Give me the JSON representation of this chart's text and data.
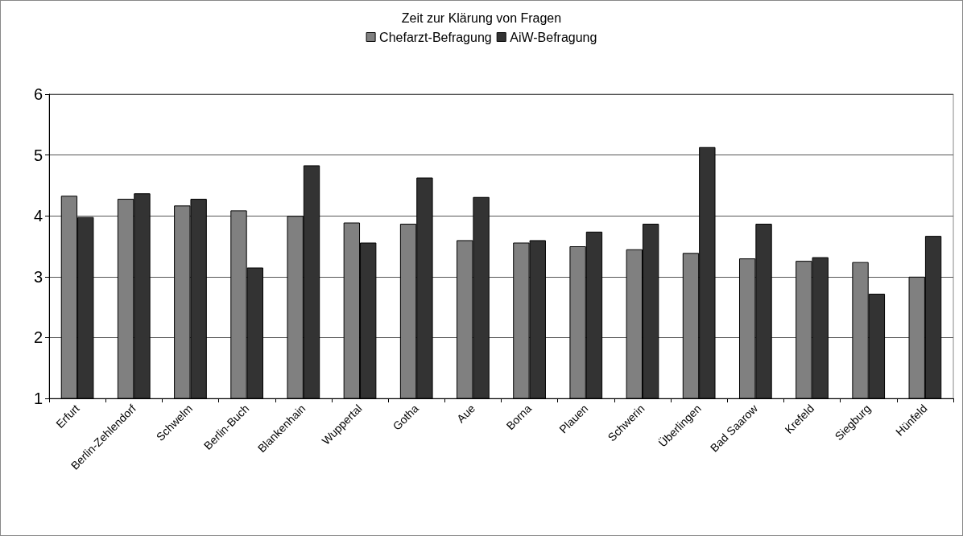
{
  "chart_data": {
    "type": "bar",
    "title": "Zeit zur Klärung von Fragen",
    "categories": [
      "Erfurt",
      "Berlin-Zehlendorf",
      "Schwelm",
      "Berlin-Buch",
      "Blankenhain",
      "Wuppertal",
      "Gotha",
      "Aue",
      "Borna",
      "Plauen",
      "Schwerin",
      "Überlingen",
      "Bad Saarow",
      "Krefeld",
      "Siegburg",
      "Hünfeld"
    ],
    "series": [
      {
        "name": "Chefarzt-Befragung",
        "color": "#808080",
        "values": [
          4.33,
          4.28,
          4.17,
          4.09,
          4.0,
          3.89,
          3.87,
          3.6,
          3.56,
          3.5,
          3.45,
          3.39,
          3.3,
          3.26,
          3.24,
          3.0
        ]
      },
      {
        "name": "AiW-Befragung",
        "color": "#333333",
        "values": [
          3.98,
          4.37,
          4.28,
          3.15,
          4.83,
          3.56,
          4.63,
          4.31,
          3.6,
          3.74,
          3.87,
          5.13,
          3.87,
          3.32,
          2.72,
          3.67
        ]
      }
    ],
    "ylim": [
      1,
      6
    ],
    "yticks": [
      1,
      2,
      3,
      4,
      5,
      6
    ],
    "grid": "y",
    "legend": "top"
  }
}
